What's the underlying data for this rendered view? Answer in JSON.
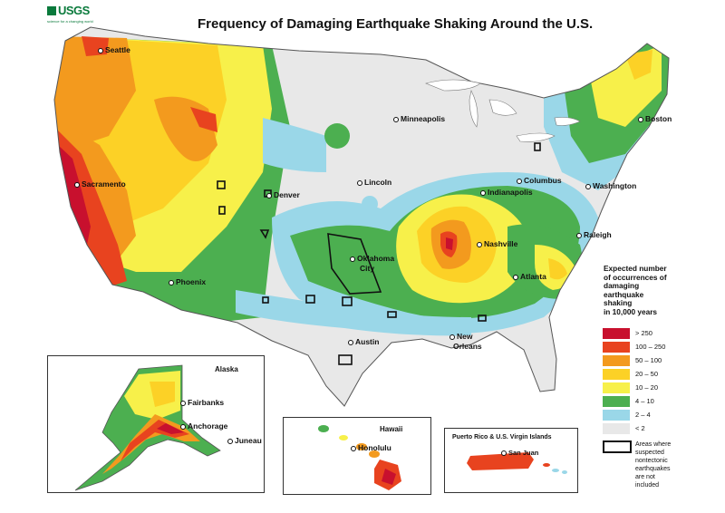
{
  "title": "Frequency of Damaging Earthquake Shaking Around the U.S.",
  "logo": {
    "wordmark": "USGS",
    "tagline": "science for a changing world"
  },
  "cities": [
    {
      "id": "seattle",
      "label": "Seattle"
    },
    {
      "id": "sacramento",
      "label": "Sacramento"
    },
    {
      "id": "phoenix",
      "label": "Phoenix"
    },
    {
      "id": "denver",
      "label": "Denver"
    },
    {
      "id": "lincoln",
      "label": "Lincoln"
    },
    {
      "id": "minneapolis",
      "label": "Minneapolis"
    },
    {
      "id": "oklahoma",
      "label": "Oklahoma"
    },
    {
      "id": "oklahoma-city",
      "label": "City"
    },
    {
      "id": "austin",
      "label": "Austin"
    },
    {
      "id": "new-orleans-new",
      "label": "New"
    },
    {
      "id": "new-orleans-orleans",
      "label": "Orleans"
    },
    {
      "id": "nashville",
      "label": "Nashville"
    },
    {
      "id": "atlanta",
      "label": "Atlanta"
    },
    {
      "id": "indianapolis",
      "label": "Indianapolis"
    },
    {
      "id": "columbus",
      "label": "Columbus"
    },
    {
      "id": "washington",
      "label": "Washington"
    },
    {
      "id": "raleigh",
      "label": "Raleigh"
    },
    {
      "id": "boston",
      "label": "Boston"
    },
    {
      "id": "fairbanks",
      "label": "Fairbanks"
    },
    {
      "id": "anchorage",
      "label": "Anchorage"
    },
    {
      "id": "juneau",
      "label": "Juneau"
    },
    {
      "id": "honolulu",
      "label": "Honolulu"
    },
    {
      "id": "san-juan",
      "label": "San Juan"
    }
  ],
  "insets": {
    "alaska": "Alaska",
    "hawaii": "Hawaii",
    "puerto_rico": "Puerto Rico & U.S. Virgin Islands"
  },
  "legend": {
    "title_lines": [
      "Expected number",
      "of occurrences of",
      "damaging",
      "earthquake",
      "shaking",
      "in 10,000 years"
    ],
    "classes": [
      {
        "label": "> 250",
        "color": "#c8102e"
      },
      {
        "label": "100 – 250",
        "color": "#e8431f"
      },
      {
        "label": "50 – 100",
        "color": "#f39a1e"
      },
      {
        "label": "20 – 50",
        "color": "#fcd126"
      },
      {
        "label": "10 – 20",
        "color": "#f7f04a"
      },
      {
        "label": "4 – 10",
        "color": "#4caf50"
      },
      {
        "label": "2 – 4",
        "color": "#9ad7e8"
      },
      {
        "label": "< 2",
        "color": "#e8e8e8"
      }
    ],
    "nontectonic_lines": [
      "Areas where",
      "suspected",
      "nontectonic",
      "earthquakes",
      "are not",
      "included"
    ]
  }
}
